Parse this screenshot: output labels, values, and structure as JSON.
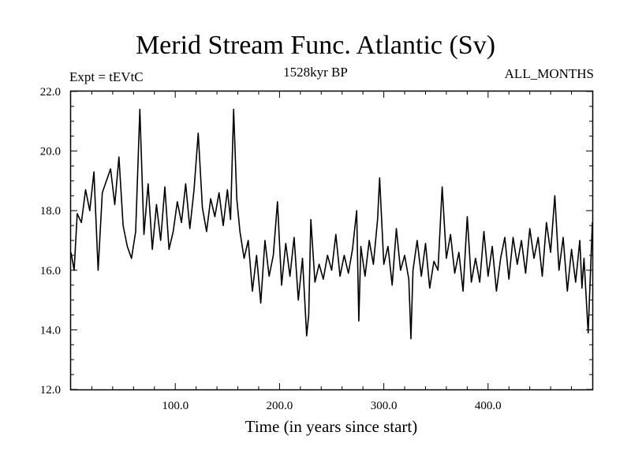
{
  "header": {
    "title": "Merid Stream Func. Atlantic (Sv)",
    "experiment": "Expt = tEVtC",
    "period": "1528kyr BP",
    "months": "ALL_MONTHS"
  },
  "chart_data": {
    "type": "line",
    "title": "Merid Stream Func. Atlantic (Sv)",
    "xlabel": "Time (in years since start)",
    "ylabel": "",
    "xlim": [
      0,
      500
    ],
    "ylim": [
      12.0,
      22.0
    ],
    "x_ticks": [
      100,
      200,
      300,
      400
    ],
    "x_tick_labels": [
      "100.0",
      "200.0",
      "300.0",
      "400.0"
    ],
    "y_ticks": [
      12,
      14,
      16,
      18,
      20,
      22
    ],
    "y_tick_labels": [
      "12.0",
      "14.0",
      "16.0",
      "18.0",
      "20.0",
      "22.0"
    ],
    "grid": false,
    "series": [
      {
        "name": "Merid Stream Func. Atlantic",
        "x": [
          0,
          3,
          6,
          10,
          14,
          18,
          22,
          26,
          30,
          34,
          38,
          42,
          46,
          50,
          54,
          58,
          62,
          66,
          70,
          74,
          78,
          82,
          86,
          90,
          94,
          98,
          102,
          106,
          110,
          114,
          118,
          122,
          126,
          130,
          134,
          138,
          142,
          146,
          150,
          153,
          156,
          159,
          162,
          166,
          170,
          174,
          178,
          182,
          186,
          190,
          194,
          198,
          202,
          206,
          210,
          214,
          218,
          222,
          226,
          228,
          230,
          234,
          238,
          242,
          246,
          250,
          254,
          258,
          262,
          266,
          270,
          274,
          276,
          278,
          282,
          286,
          290,
          294,
          296,
          300,
          304,
          308,
          312,
          316,
          320,
          324,
          326,
          328,
          332,
          336,
          340,
          344,
          348,
          352,
          356,
          360,
          364,
          368,
          372,
          376,
          380,
          384,
          388,
          392,
          396,
          400,
          404,
          408,
          412,
          416,
          420,
          424,
          428,
          432,
          436,
          440,
          444,
          448,
          452,
          456,
          460,
          464,
          468,
          472,
          476,
          480,
          484,
          488,
          490,
          492,
          496,
          500
        ],
        "values": [
          16.6,
          16.0,
          17.9,
          17.6,
          18.7,
          18.0,
          19.3,
          16.0,
          18.6,
          19.0,
          19.4,
          18.2,
          19.8,
          17.5,
          16.8,
          16.4,
          17.3,
          21.4,
          17.2,
          18.9,
          16.7,
          18.2,
          17.0,
          18.8,
          16.7,
          17.3,
          18.3,
          17.6,
          18.9,
          17.4,
          18.7,
          20.6,
          18.1,
          17.3,
          18.4,
          17.8,
          18.6,
          17.5,
          18.7,
          17.7,
          21.4,
          18.4,
          17.3,
          16.4,
          17.0,
          15.3,
          16.5,
          14.9,
          17.0,
          15.8,
          16.5,
          18.3,
          15.5,
          16.9,
          15.8,
          17.1,
          15.0,
          16.4,
          13.8,
          14.5,
          17.7,
          15.6,
          16.2,
          15.7,
          16.5,
          16.0,
          17.2,
          15.8,
          16.5,
          15.9,
          16.7,
          18.0,
          14.3,
          16.8,
          15.8,
          17.0,
          16.2,
          17.7,
          19.1,
          16.2,
          16.8,
          15.5,
          17.4,
          16.0,
          16.5,
          15.7,
          13.7,
          16.0,
          17.0,
          15.8,
          16.9,
          15.4,
          16.3,
          16.0,
          18.8,
          16.4,
          17.2,
          15.9,
          16.6,
          15.3,
          17.8,
          15.6,
          16.4,
          15.6,
          17.3,
          15.8,
          16.8,
          15.3,
          16.4,
          17.1,
          15.7,
          17.1,
          16.2,
          17.0,
          15.9,
          17.4,
          16.4,
          17.1,
          15.8,
          17.6,
          16.6,
          18.5,
          16.0,
          17.1,
          15.3,
          16.7,
          15.6,
          17.0,
          15.4,
          16.4,
          13.9,
          17.6
        ]
      }
    ]
  }
}
